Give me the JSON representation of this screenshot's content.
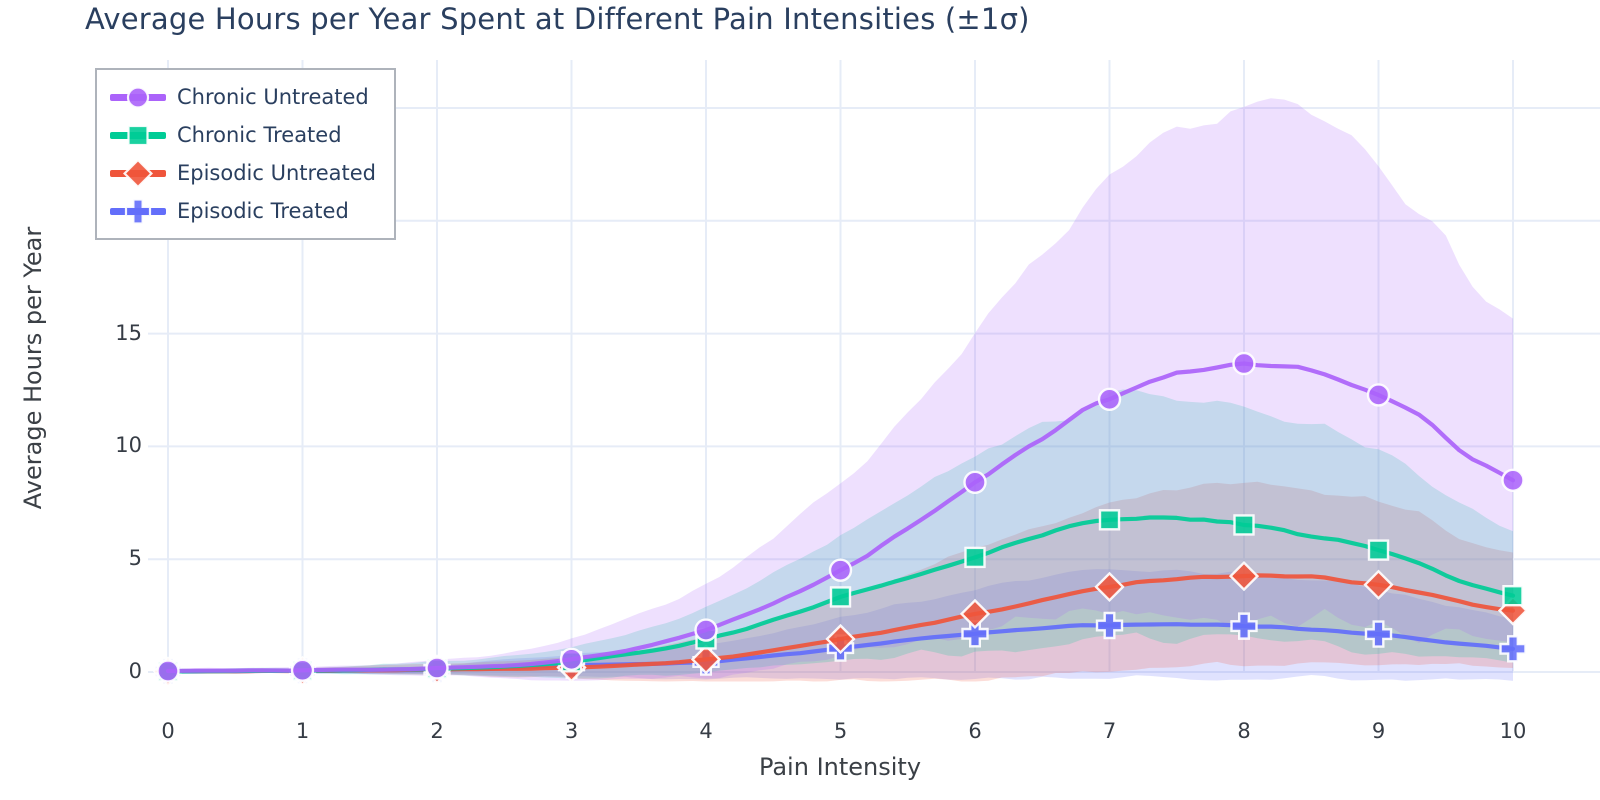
{
  "chart_data": {
    "type": "line",
    "title": "Average Hours per Year Spent at Different Pain Intensities (±1σ)",
    "xlabel": "Pain Intensity",
    "ylabel": "Average Hours per Year",
    "x": [
      0,
      1,
      2,
      3,
      4,
      5,
      6,
      7,
      8,
      9,
      10
    ],
    "x_ticks": [
      0,
      1,
      2,
      3,
      4,
      5,
      6,
      7,
      8,
      9,
      10
    ],
    "y_ticks": [
      0,
      5,
      10,
      15,
      20,
      25
    ],
    "xlim": [
      -0.15,
      10.65
    ],
    "ylim": [
      -0.5,
      27.1
    ],
    "grid": true,
    "legend_position": "top-left",
    "band_meaning": "±1 standard deviation",
    "band_opacity": 0.2,
    "series": [
      {
        "name": "Chronic Untreated",
        "color": "#ab63fa",
        "marker": "circle",
        "mean": [
          0.05,
          0.08,
          0.18,
          0.55,
          1.9,
          4.5,
          8.35,
          12.2,
          13.55,
          12.35,
          8.55
        ],
        "sigma": [
          0.1,
          0.15,
          0.35,
          0.9,
          2.1,
          3.9,
          6.6,
          9.2,
          11.4,
          10.3,
          6.9
        ]
      },
      {
        "name": "Chronic Treated",
        "color": "#00cc96",
        "marker": "square",
        "mean": [
          0.04,
          0.07,
          0.15,
          0.45,
          1.45,
          3.3,
          5.15,
          6.8,
          6.55,
          5.4,
          3.4
        ],
        "sigma": [
          0.08,
          0.12,
          0.3,
          0.7,
          1.4,
          2.7,
          4.3,
          5.3,
          5.1,
          4.4,
          2.9
        ]
      },
      {
        "name": "Episodic Untreated",
        "color": "#ef553b",
        "marker": "diamond",
        "mean": [
          0.03,
          0.05,
          0.12,
          0.2,
          0.55,
          1.45,
          2.55,
          3.8,
          4.3,
          3.9,
          2.7
        ],
        "sigma": [
          0.06,
          0.1,
          0.25,
          0.45,
          1.0,
          1.8,
          2.9,
          3.7,
          4.0,
          3.6,
          2.5
        ]
      },
      {
        "name": "Episodic Treated",
        "color": "#636efa",
        "marker": "cross",
        "mean": [
          0.03,
          0.05,
          0.1,
          0.3,
          0.45,
          1.05,
          1.7,
          2.1,
          2.05,
          1.65,
          1.05
        ],
        "sigma": [
          0.06,
          0.1,
          0.2,
          0.5,
          0.75,
          1.3,
          2.0,
          2.4,
          2.3,
          2.0,
          1.4
        ]
      }
    ],
    "colors": {
      "title_text": "#2a3f5f",
      "tick_text": "#363c45",
      "gridline": "#e6ecf7",
      "legend_border": "#aeb3bb",
      "plot_background": "#ffffff"
    }
  }
}
